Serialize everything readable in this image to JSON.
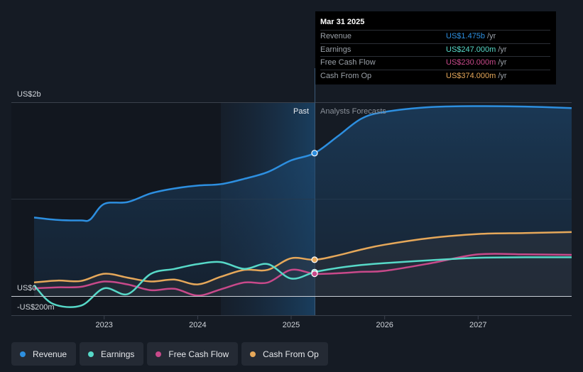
{
  "colors": {
    "revenue": "#2d8fe0",
    "earnings": "#57d9c8",
    "fcf": "#c8498a",
    "cfo": "#e6a85a"
  },
  "chart_data": {
    "type": "line",
    "x_range": [
      2022.25,
      2028.0
    ],
    "y_range": [
      -200,
      2000
    ],
    "divider_x": 2025.25,
    "past_label": "Past",
    "forecast_label": "Analysts Forecasts",
    "y_tick_labels": [
      {
        "label": "US$2b",
        "value": 2000
      },
      {
        "label": "US$0",
        "value": 0
      },
      {
        "label": "-US$200m",
        "value": -200
      }
    ],
    "x_ticks": [
      {
        "label": "2023",
        "value": 2023.0
      },
      {
        "label": "2024",
        "value": 2024.0
      },
      {
        "label": "2025",
        "value": 2025.0
      },
      {
        "label": "2026",
        "value": 2026.0
      },
      {
        "label": "2027",
        "value": 2027.0
      }
    ],
    "series": [
      {
        "key": "revenue",
        "name": "Revenue",
        "color": "#2d8fe0",
        "fill": true,
        "points": [
          [
            2022.25,
            810
          ],
          [
            2022.5,
            785
          ],
          [
            2022.75,
            780
          ],
          [
            2022.85,
            790
          ],
          [
            2023.0,
            950
          ],
          [
            2023.25,
            970
          ],
          [
            2023.5,
            1060
          ],
          [
            2023.75,
            1110
          ],
          [
            2024.0,
            1140
          ],
          [
            2024.25,
            1155
          ],
          [
            2024.5,
            1210
          ],
          [
            2024.75,
            1280
          ],
          [
            2025.0,
            1400
          ],
          [
            2025.25,
            1475
          ],
          [
            2025.5,
            1650
          ],
          [
            2025.75,
            1830
          ],
          [
            2026.0,
            1900
          ],
          [
            2026.5,
            1950
          ],
          [
            2027.0,
            1960
          ],
          [
            2027.5,
            1955
          ],
          [
            2028.0,
            1940
          ]
        ]
      },
      {
        "key": "earnings",
        "name": "Earnings",
        "color": "#57d9c8",
        "fill": false,
        "points": [
          [
            2022.25,
            110
          ],
          [
            2022.45,
            -80
          ],
          [
            2022.75,
            -100
          ],
          [
            2023.0,
            80
          ],
          [
            2023.25,
            20
          ],
          [
            2023.5,
            230
          ],
          [
            2023.75,
            280
          ],
          [
            2024.0,
            330
          ],
          [
            2024.25,
            350
          ],
          [
            2024.5,
            280
          ],
          [
            2024.75,
            330
          ],
          [
            2025.0,
            180
          ],
          [
            2025.25,
            247
          ],
          [
            2025.5,
            290
          ],
          [
            2025.75,
            320
          ],
          [
            2026.0,
            340
          ],
          [
            2026.5,
            370
          ],
          [
            2027.0,
            395
          ],
          [
            2027.5,
            400
          ],
          [
            2028.0,
            400
          ]
        ]
      },
      {
        "key": "fcf",
        "name": "Free Cash Flow",
        "color": "#c8498a",
        "fill": false,
        "points": [
          [
            2022.25,
            80
          ],
          [
            2022.5,
            90
          ],
          [
            2022.75,
            95
          ],
          [
            2023.0,
            150
          ],
          [
            2023.25,
            120
          ],
          [
            2023.5,
            60
          ],
          [
            2023.75,
            75
          ],
          [
            2024.0,
            5
          ],
          [
            2024.25,
            70
          ],
          [
            2024.5,
            140
          ],
          [
            2024.75,
            140
          ],
          [
            2025.0,
            270
          ],
          [
            2025.25,
            230
          ],
          [
            2025.5,
            235
          ],
          [
            2025.75,
            250
          ],
          [
            2026.0,
            260
          ],
          [
            2026.5,
            340
          ],
          [
            2027.0,
            430
          ],
          [
            2027.5,
            430
          ],
          [
            2028.0,
            425
          ]
        ]
      },
      {
        "key": "cfo",
        "name": "Cash From Op",
        "color": "#e6a85a",
        "fill": false,
        "points": [
          [
            2022.25,
            140
          ],
          [
            2022.5,
            160
          ],
          [
            2022.75,
            155
          ],
          [
            2023.0,
            230
          ],
          [
            2023.25,
            190
          ],
          [
            2023.5,
            150
          ],
          [
            2023.75,
            170
          ],
          [
            2024.0,
            120
          ],
          [
            2024.25,
            200
          ],
          [
            2024.5,
            270
          ],
          [
            2024.75,
            270
          ],
          [
            2025.0,
            390
          ],
          [
            2025.25,
            374
          ],
          [
            2025.5,
            420
          ],
          [
            2025.75,
            480
          ],
          [
            2026.0,
            530
          ],
          [
            2026.5,
            600
          ],
          [
            2027.0,
            640
          ],
          [
            2027.5,
            650
          ],
          [
            2028.0,
            660
          ]
        ]
      }
    ],
    "highlight_x": 2025.25
  },
  "tooltip": {
    "date": "Mar 31 2025",
    "rows": [
      {
        "label": "Revenue",
        "value": "US$1.475b",
        "unit": "/yr",
        "color": "#2d8fe0"
      },
      {
        "label": "Earnings",
        "value": "US$247.000m",
        "unit": "/yr",
        "color": "#57d9c8"
      },
      {
        "label": "Free Cash Flow",
        "value": "US$230.000m",
        "unit": "/yr",
        "color": "#c8498a"
      },
      {
        "label": "Cash From Op",
        "value": "US$374.000m",
        "unit": "/yr",
        "color": "#e6a85a"
      }
    ]
  },
  "legend": [
    {
      "label": "Revenue",
      "color": "#2d8fe0"
    },
    {
      "label": "Earnings",
      "color": "#57d9c8"
    },
    {
      "label": "Free Cash Flow",
      "color": "#c8498a"
    },
    {
      "label": "Cash From Op",
      "color": "#e6a85a"
    }
  ]
}
